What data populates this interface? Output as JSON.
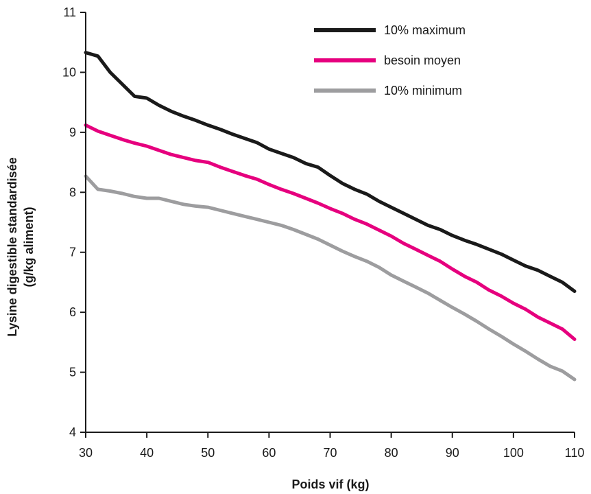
{
  "chart_data": {
    "type": "line",
    "xlabel": "Poids vif (kg)",
    "ylabel_line1": "Lysine digestible standardisée",
    "ylabel_line2": "(g/kg aliment)",
    "xlim": [
      30,
      110
    ],
    "ylim": [
      4,
      11
    ],
    "xticks": [
      30,
      40,
      50,
      60,
      70,
      80,
      90,
      100,
      110
    ],
    "yticks": [
      4,
      5,
      6,
      7,
      8,
      9,
      10,
      11
    ],
    "grid": false,
    "legend_position": "top-right",
    "x": [
      30,
      32,
      34,
      36,
      38,
      40,
      42,
      44,
      46,
      48,
      50,
      52,
      54,
      56,
      58,
      60,
      62,
      64,
      66,
      68,
      70,
      72,
      74,
      76,
      78,
      80,
      82,
      84,
      86,
      88,
      90,
      92,
      94,
      96,
      98,
      100,
      102,
      104,
      106,
      108,
      110
    ],
    "series": [
      {
        "name": "10% maximum",
        "color": "#1a1a1a",
        "values": [
          10.33,
          10.27,
          10.0,
          9.8,
          9.6,
          9.57,
          9.45,
          9.35,
          9.27,
          9.2,
          9.12,
          9.05,
          8.97,
          8.9,
          8.83,
          8.72,
          8.65,
          8.58,
          8.48,
          8.42,
          8.28,
          8.15,
          8.05,
          7.97,
          7.85,
          7.75,
          7.65,
          7.55,
          7.45,
          7.38,
          7.28,
          7.2,
          7.13,
          7.05,
          6.97,
          6.87,
          6.77,
          6.7,
          6.6,
          6.5,
          6.35
        ]
      },
      {
        "name": "besoin moyen",
        "color": "#e6007e",
        "values": [
          9.12,
          9.02,
          8.95,
          8.88,
          8.82,
          8.77,
          8.7,
          8.63,
          8.58,
          8.53,
          8.5,
          8.42,
          8.35,
          8.28,
          8.22,
          8.13,
          8.05,
          7.98,
          7.9,
          7.82,
          7.73,
          7.65,
          7.55,
          7.47,
          7.37,
          7.27,
          7.15,
          7.05,
          6.95,
          6.85,
          6.72,
          6.6,
          6.5,
          6.37,
          6.27,
          6.15,
          6.05,
          5.92,
          5.82,
          5.72,
          5.55
        ]
      },
      {
        "name": "10% minimum",
        "color": "#9d9d9f",
        "values": [
          8.27,
          8.05,
          8.02,
          7.98,
          7.93,
          7.9,
          7.9,
          7.85,
          7.8,
          7.77,
          7.75,
          7.7,
          7.65,
          7.6,
          7.55,
          7.5,
          7.45,
          7.38,
          7.3,
          7.22,
          7.12,
          7.02,
          6.93,
          6.85,
          6.75,
          6.62,
          6.52,
          6.42,
          6.32,
          6.2,
          6.08,
          5.97,
          5.85,
          5.72,
          5.6,
          5.47,
          5.35,
          5.22,
          5.1,
          5.02,
          4.88
        ]
      }
    ]
  }
}
